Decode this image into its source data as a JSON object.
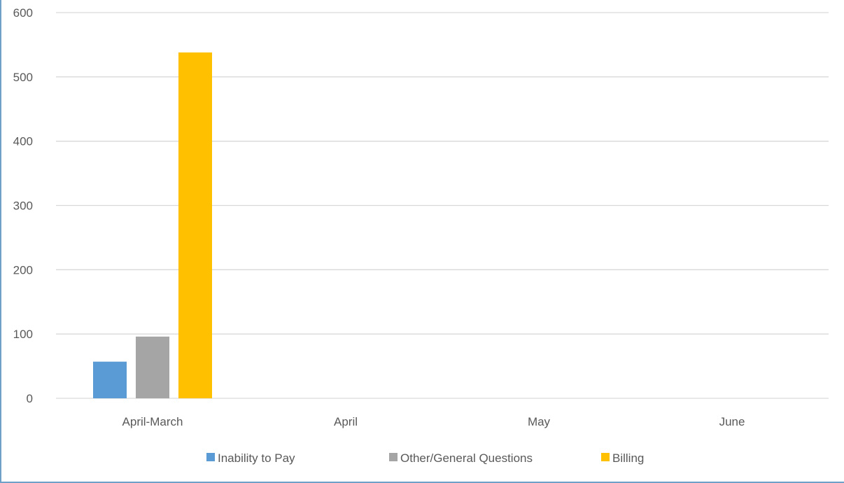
{
  "chart_data": {
    "type": "bar",
    "title": "",
    "xlabel": "",
    "ylabel": "",
    "categories": [
      "April-March",
      "April",
      "May",
      "June"
    ],
    "series": [
      {
        "name": "Inability to Pay",
        "color": "#5b9bd5",
        "values": [
          57,
          0,
          0,
          0
        ]
      },
      {
        "name": "Other/General Questions",
        "color": "#a5a5a5",
        "values": [
          96,
          0,
          0,
          0
        ]
      },
      {
        "name": "Billing",
        "color": "#ffc000",
        "values": [
          538,
          0,
          0,
          0
        ]
      }
    ],
    "ylim": [
      0,
      600
    ],
    "yticks": [
      "0",
      "100",
      "200",
      "300",
      "400",
      "500",
      "600"
    ],
    "grid": true,
    "legend_position": "bottom",
    "gridline_color": "#d9d9d9",
    "text_color": "#595959"
  }
}
